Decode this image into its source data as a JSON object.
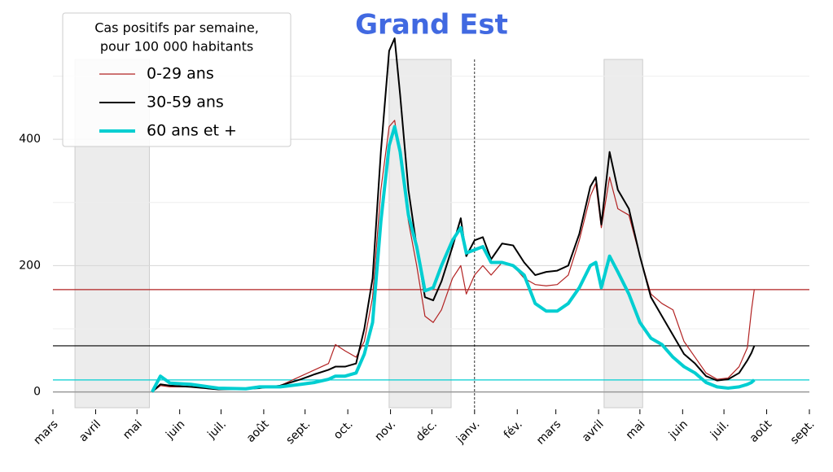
{
  "chart_data": {
    "type": "line",
    "title": "Grand Est",
    "legend_title": [
      "Cas positifs par semaine,",
      "pour 100 000 habitants"
    ],
    "legend_position": "upper left",
    "xlim": [
      0,
      549
    ],
    "xticks": [
      {
        "value": 0,
        "label": "mars"
      },
      {
        "value": 31,
        "label": "avril"
      },
      {
        "value": 61,
        "label": "mai"
      },
      {
        "value": 92,
        "label": "juin"
      },
      {
        "value": 122,
        "label": "juil."
      },
      {
        "value": 153,
        "label": "août"
      },
      {
        "value": 183,
        "label": "sept."
      },
      {
        "value": 214,
        "label": "oct."
      },
      {
        "value": 245,
        "label": "nov."
      },
      {
        "value": 275,
        "label": "déc."
      },
      {
        "value": 306,
        "label": "janv."
      },
      {
        "value": 337,
        "label": "fév."
      },
      {
        "value": 365,
        "label": "mars"
      },
      {
        "value": 396,
        "label": "avril"
      },
      {
        "value": 426,
        "label": "mai"
      },
      {
        "value": 457,
        "label": "juin"
      },
      {
        "value": 487,
        "label": "juil."
      },
      {
        "value": 518,
        "label": "août"
      },
      {
        "value": 549,
        "label": "sept."
      }
    ],
    "ylim": [
      -25,
      560
    ],
    "yticks": [
      0,
      200,
      400
    ],
    "minor_yticks": [
      100,
      300,
      500
    ],
    "grid": true,
    "vline": 306,
    "shaded_spans": [
      [
        16,
        70
      ],
      [
        244,
        289
      ],
      [
        400,
        428
      ]
    ],
    "x": [
      72,
      78,
      85,
      100,
      120,
      140,
      150,
      165,
      180,
      190,
      200,
      205,
      212,
      220,
      226,
      232,
      238,
      244,
      248,
      252,
      258,
      264,
      270,
      276,
      282,
      290,
      296,
      300,
      306,
      312,
      318,
      326,
      334,
      342,
      350,
      358,
      366,
      374,
      382,
      390,
      394,
      398,
      404,
      410,
      418,
      426,
      434,
      442,
      450,
      458,
      466,
      474,
      482,
      490,
      498,
      504,
      507,
      509
    ],
    "series": [
      {
        "name": "0-29 ans",
        "color": "#b22222",
        "width": 1.2,
        "values": [
          0,
          10,
          8,
          8,
          4,
          4,
          6,
          10,
          25,
          35,
          45,
          75,
          65,
          55,
          80,
          150,
          320,
          420,
          430,
          370,
          270,
          200,
          120,
          110,
          130,
          180,
          200,
          155,
          185,
          200,
          185,
          205,
          200,
          180,
          170,
          168,
          170,
          185,
          240,
          310,
          330,
          260,
          340,
          290,
          280,
          215,
          155,
          140,
          130,
          80,
          55,
          30,
          20,
          22,
          40,
          70,
          130,
          162
        ]
      },
      {
        "name": "30-59 ans",
        "color": "#000000",
        "width": 2,
        "values": [
          0,
          12,
          10,
          8,
          4,
          5,
          6,
          10,
          20,
          28,
          35,
          40,
          40,
          45,
          100,
          180,
          380,
          540,
          560,
          470,
          320,
          230,
          150,
          145,
          175,
          230,
          275,
          215,
          240,
          245,
          210,
          235,
          232,
          205,
          185,
          190,
          192,
          200,
          250,
          325,
          340,
          265,
          380,
          320,
          290,
          215,
          150,
          120,
          90,
          60,
          45,
          25,
          18,
          20,
          30,
          50,
          62,
          73
        ]
      },
      {
        "name": "60 ans et +",
        "color": "#00ced1",
        "width": 4,
        "values": [
          0,
          25,
          14,
          12,
          6,
          5,
          8,
          8,
          12,
          15,
          20,
          25,
          25,
          30,
          60,
          110,
          270,
          390,
          420,
          380,
          280,
          230,
          160,
          165,
          200,
          240,
          260,
          220,
          225,
          230,
          205,
          205,
          200,
          185,
          140,
          128,
          128,
          140,
          165,
          200,
          205,
          165,
          215,
          190,
          155,
          110,
          85,
          75,
          55,
          40,
          30,
          15,
          8,
          6,
          8,
          12,
          15,
          19
        ]
      }
    ],
    "hlines": [
      {
        "value": 162,
        "color": "#b22222"
      },
      {
        "value": 73,
        "color": "#000000"
      },
      {
        "value": 19,
        "color": "#00ced1"
      }
    ]
  }
}
